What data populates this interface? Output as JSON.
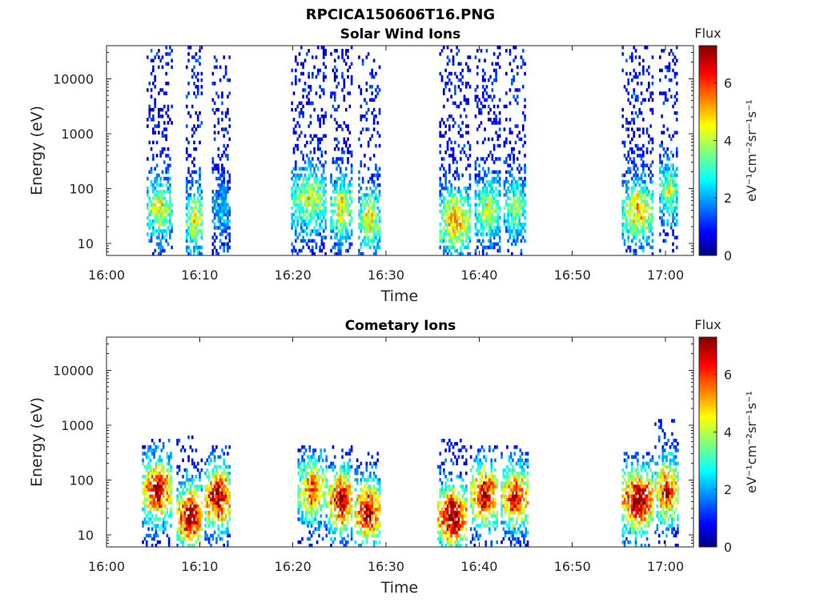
{
  "figure_title": "RPCICA150606T16.PNG",
  "chart_data": [
    {
      "type": "heatmap",
      "title": "Solar Wind Ions",
      "xlabel": "Time",
      "ylabel": "Energy (eV)",
      "y_scale": "log",
      "xlim": [
        "16:00",
        "17:03"
      ],
      "ylim": [
        6,
        40000
      ],
      "x_ticks": [
        "16:00",
        "16:10",
        "16:20",
        "16:30",
        "16:40",
        "16:50",
        "17:00"
      ],
      "y_ticks": [
        "10",
        "100",
        "1000",
        "10000"
      ],
      "colorbar": {
        "title": "Flux",
        "label": "eV⁻¹cm⁻²sr⁻¹s⁻¹",
        "range": [
          0,
          7.3
        ],
        "ticks": [
          "0",
          "2",
          "4",
          "6"
        ],
        "colormap": "jet"
      },
      "bursts": [
        {
          "start": "16:04.3",
          "end": "16:07.0",
          "emin": 6,
          "emax": 40000,
          "peak_energy": 40,
          "peak_flux": 3.6
        },
        {
          "start": "16:08.5",
          "end": "16:10.3",
          "emin": 6,
          "emax": 40000,
          "peak_energy": 25,
          "peak_flux": 3.8
        },
        {
          "start": "16:11.3",
          "end": "16:13.3",
          "emin": 6,
          "emax": 30000,
          "peak_energy": 40,
          "peak_flux": 1.4
        },
        {
          "start": "16:19.8",
          "end": "16:23.6",
          "emin": 6,
          "emax": 40000,
          "peak_energy": 60,
          "peak_flux": 3.6
        },
        {
          "start": "16:24.0",
          "end": "16:26.4",
          "emin": 6,
          "emax": 40000,
          "peak_energy": 40,
          "peak_flux": 3.8
        },
        {
          "start": "16:27.0",
          "end": "16:29.3",
          "emin": 6,
          "emax": 30000,
          "peak_energy": 25,
          "peak_flux": 3.8
        },
        {
          "start": "16:35.7",
          "end": "16:39.0",
          "emin": 6,
          "emax": 40000,
          "peak_energy": 25,
          "peak_flux": 4.5
        },
        {
          "start": "16:39.5",
          "end": "16:42.3",
          "emin": 6,
          "emax": 40000,
          "peak_energy": 40,
          "peak_flux": 3.4
        },
        {
          "start": "16:42.6",
          "end": "16:45.0",
          "emin": 6,
          "emax": 40000,
          "peak_energy": 40,
          "peak_flux": 3.0
        },
        {
          "start": "16:55.3",
          "end": "16:58.6",
          "emin": 6,
          "emax": 40000,
          "peak_energy": 35,
          "peak_flux": 4.2
        },
        {
          "start": "16:59.3",
          "end": "17:01.3",
          "emin": 6,
          "emax": 40000,
          "peak_energy": 80,
          "peak_flux": 3.2
        }
      ]
    },
    {
      "type": "heatmap",
      "title": "Cometary Ions",
      "xlabel": "Time",
      "ylabel": "Energy (eV)",
      "y_scale": "log",
      "xlim": [
        "16:00",
        "17:03"
      ],
      "ylim": [
        6,
        40000
      ],
      "x_ticks": [
        "16:00",
        "16:10",
        "16:20",
        "16:30",
        "16:40",
        "16:50",
        "17:00"
      ],
      "y_ticks": [
        "10",
        "100",
        "1000",
        "10000"
      ],
      "colorbar": {
        "title": "Flux",
        "label": "eV⁻¹cm⁻²sr⁻¹s⁻¹",
        "range": [
          0,
          7.3
        ],
        "ticks": [
          "0",
          "2",
          "4",
          "6"
        ],
        "colormap": "jet"
      },
      "bursts": [
        {
          "start": "16:03.8",
          "end": "16:07.0",
          "emin": 6,
          "emax": 500,
          "peak_energy": 60,
          "peak_flux": 6.2
        },
        {
          "start": "16:07.5",
          "end": "16:10.3",
          "emin": 6,
          "emax": 600,
          "peak_energy": 20,
          "peak_flux": 6.8
        },
        {
          "start": "16:10.5",
          "end": "16:13.3",
          "emin": 6,
          "emax": 400,
          "peak_energy": 45,
          "peak_flux": 6.5
        },
        {
          "start": "16:20.5",
          "end": "16:23.6",
          "emin": 6,
          "emax": 400,
          "peak_energy": 60,
          "peak_flux": 5.0
        },
        {
          "start": "16:23.8",
          "end": "16:26.4",
          "emin": 6,
          "emax": 400,
          "peak_energy": 40,
          "peak_flux": 6.6
        },
        {
          "start": "16:26.6",
          "end": "16:29.3",
          "emin": 6,
          "emax": 300,
          "peak_energy": 25,
          "peak_flux": 6.4
        },
        {
          "start": "16:35.5",
          "end": "16:38.6",
          "emin": 6,
          "emax": 500,
          "peak_energy": 20,
          "peak_flux": 6.9
        },
        {
          "start": "16:39.0",
          "end": "16:42.0",
          "emin": 6,
          "emax": 400,
          "peak_energy": 50,
          "peak_flux": 6.3
        },
        {
          "start": "16:42.3",
          "end": "16:45.3",
          "emin": 6,
          "emax": 400,
          "peak_energy": 45,
          "peak_flux": 5.8
        },
        {
          "start": "16:55.3",
          "end": "16:58.6",
          "emin": 6,
          "emax": 300,
          "peak_energy": 40,
          "peak_flux": 7.0
        },
        {
          "start": "16:58.8",
          "end": "17:01.3",
          "emin": 6,
          "emax": 1200,
          "peak_energy": 60,
          "peak_flux": 5.8
        }
      ]
    }
  ]
}
